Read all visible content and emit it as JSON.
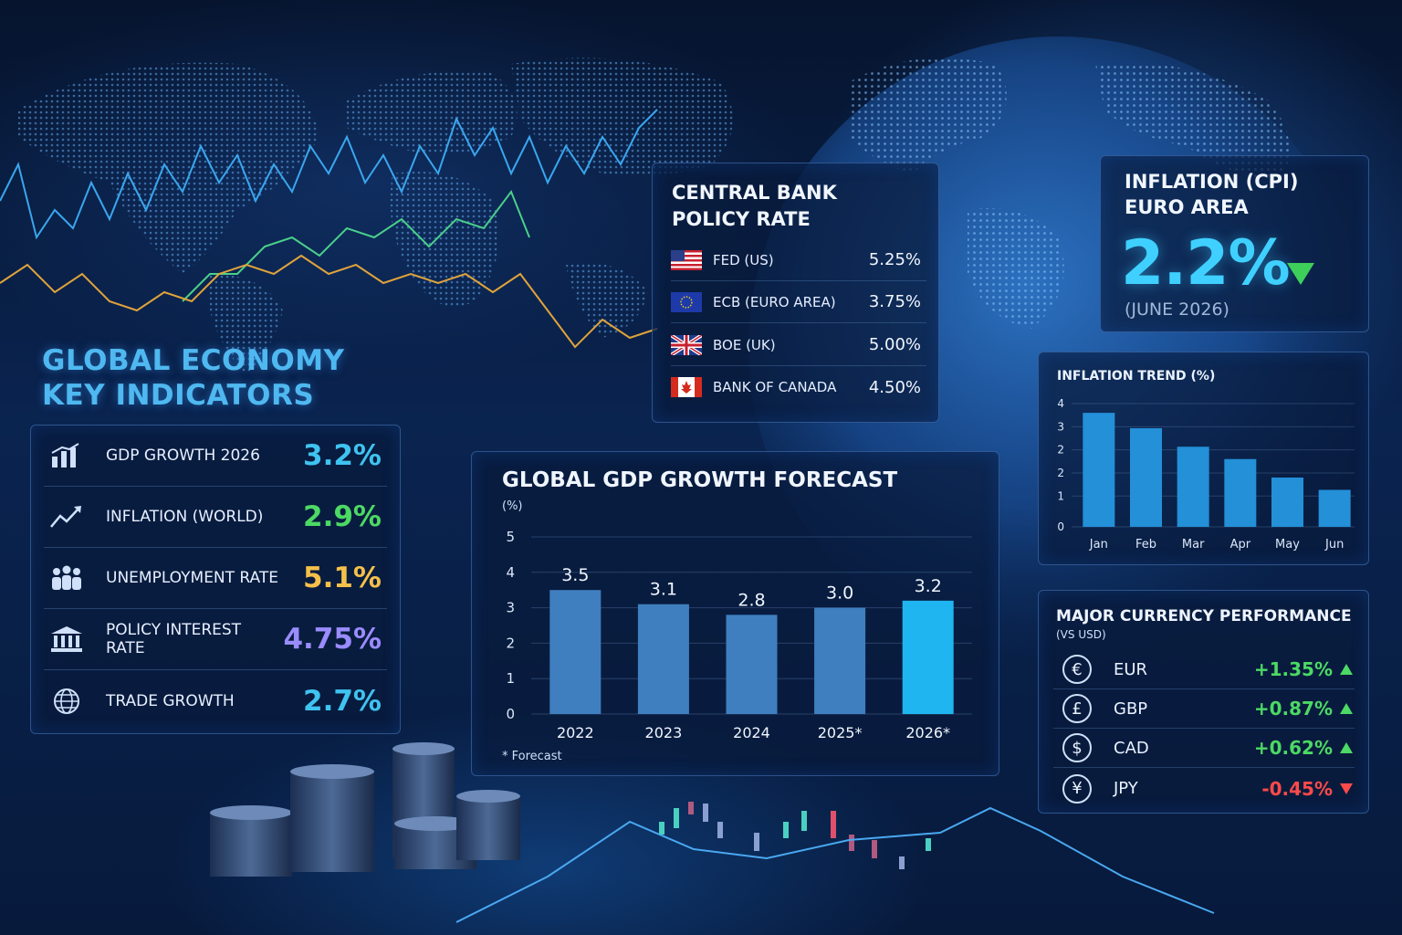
{
  "colors": {
    "accent_blue": "#3fc3f0",
    "green": "#4cd964",
    "amber": "#f5c04a",
    "purple": "#9a8cff",
    "red": "#ff4a4a",
    "bar_blue": "#3f7fc0",
    "bar_highlight": "#1fb5f0"
  },
  "headline": {
    "line1": "GLOBAL ECONOMY",
    "line2": "KEY INDICATORS"
  },
  "key_indicators": [
    {
      "icon": "bar-chart-icon",
      "label": "GDP GROWTH 2026",
      "value": "3.2%",
      "color": "#3fc3f0"
    },
    {
      "icon": "trend-up-icon",
      "label": "INFLATION (WORLD)",
      "value": "2.9%",
      "color": "#4cd964"
    },
    {
      "icon": "people-icon",
      "label": "UNEMPLOYMENT RATE",
      "value": "5.1%",
      "color": "#f5c04a"
    },
    {
      "icon": "bank-icon",
      "label": "POLICY INTEREST RATE",
      "value": "4.75%",
      "color": "#9a8cff"
    },
    {
      "icon": "globe-icon",
      "label": "TRADE GROWTH",
      "value": "2.7%",
      "color": "#3fc3f0"
    }
  ],
  "central_bank": {
    "title_line1": "CENTRAL BANK",
    "title_line2": "POLICY RATE",
    "rows": [
      {
        "flag": "us-flag-icon",
        "name": "FED (US)",
        "rate": "5.25%"
      },
      {
        "flag": "eu-flag-icon",
        "name": "ECB (EURO AREA)",
        "rate": "3.75%"
      },
      {
        "flag": "uk-flag-icon",
        "name": "BOE (UK)",
        "rate": "5.00%"
      },
      {
        "flag": "canada-flag-icon",
        "name": "BANK OF CANADA",
        "rate": "4.50%"
      }
    ]
  },
  "inflation_cpi": {
    "title_line1": "INFLATION (CPI)",
    "title_line2": "EURO AREA",
    "value": "2.2%",
    "direction": "down",
    "date": "(JUNE 2026)"
  },
  "chart_data": [
    {
      "type": "bar",
      "title": "GLOBAL GDP GROWTH FORECAST",
      "ylabel": "(%)",
      "categories": [
        "2022",
        "2023",
        "2024",
        "2025*",
        "2026*"
      ],
      "values": [
        3.5,
        3.1,
        2.8,
        3.0,
        3.2
      ],
      "data_labels": [
        "3.5",
        "3.1",
        "2.8",
        "3.0",
        "3.2"
      ],
      "highlight_index": 4,
      "ylim": [
        0,
        5
      ],
      "yticks": [
        "0",
        "1",
        "2",
        "3",
        "4",
        "5"
      ],
      "grid": true,
      "note": "* Forecast"
    },
    {
      "type": "bar",
      "title": "INFLATION TREND (%)",
      "categories": [
        "Jan",
        "Feb",
        "Mar",
        "Apr",
        "May",
        "Jun"
      ],
      "values": [
        3.7,
        3.2,
        2.6,
        2.2,
        1.6,
        1.2
      ],
      "ylim": [
        0,
        4
      ],
      "yticks": [
        "0",
        "1",
        "2",
        "2",
        "3",
        "4"
      ],
      "grid": true
    }
  ],
  "currency": {
    "title": "MAJOR CURRENCY PERFORMANCE",
    "subtitle": "(VS USD)",
    "rows": [
      {
        "symbol": "€",
        "code": "EUR",
        "change": "+1.35%",
        "direction": "up"
      },
      {
        "symbol": "£",
        "code": "GBP",
        "change": "+0.87%",
        "direction": "up"
      },
      {
        "symbol": "$",
        "code": "CAD",
        "change": "+0.62%",
        "direction": "up"
      },
      {
        "symbol": "¥",
        "code": "JPY",
        "change": "-0.45%",
        "direction": "down"
      }
    ]
  }
}
